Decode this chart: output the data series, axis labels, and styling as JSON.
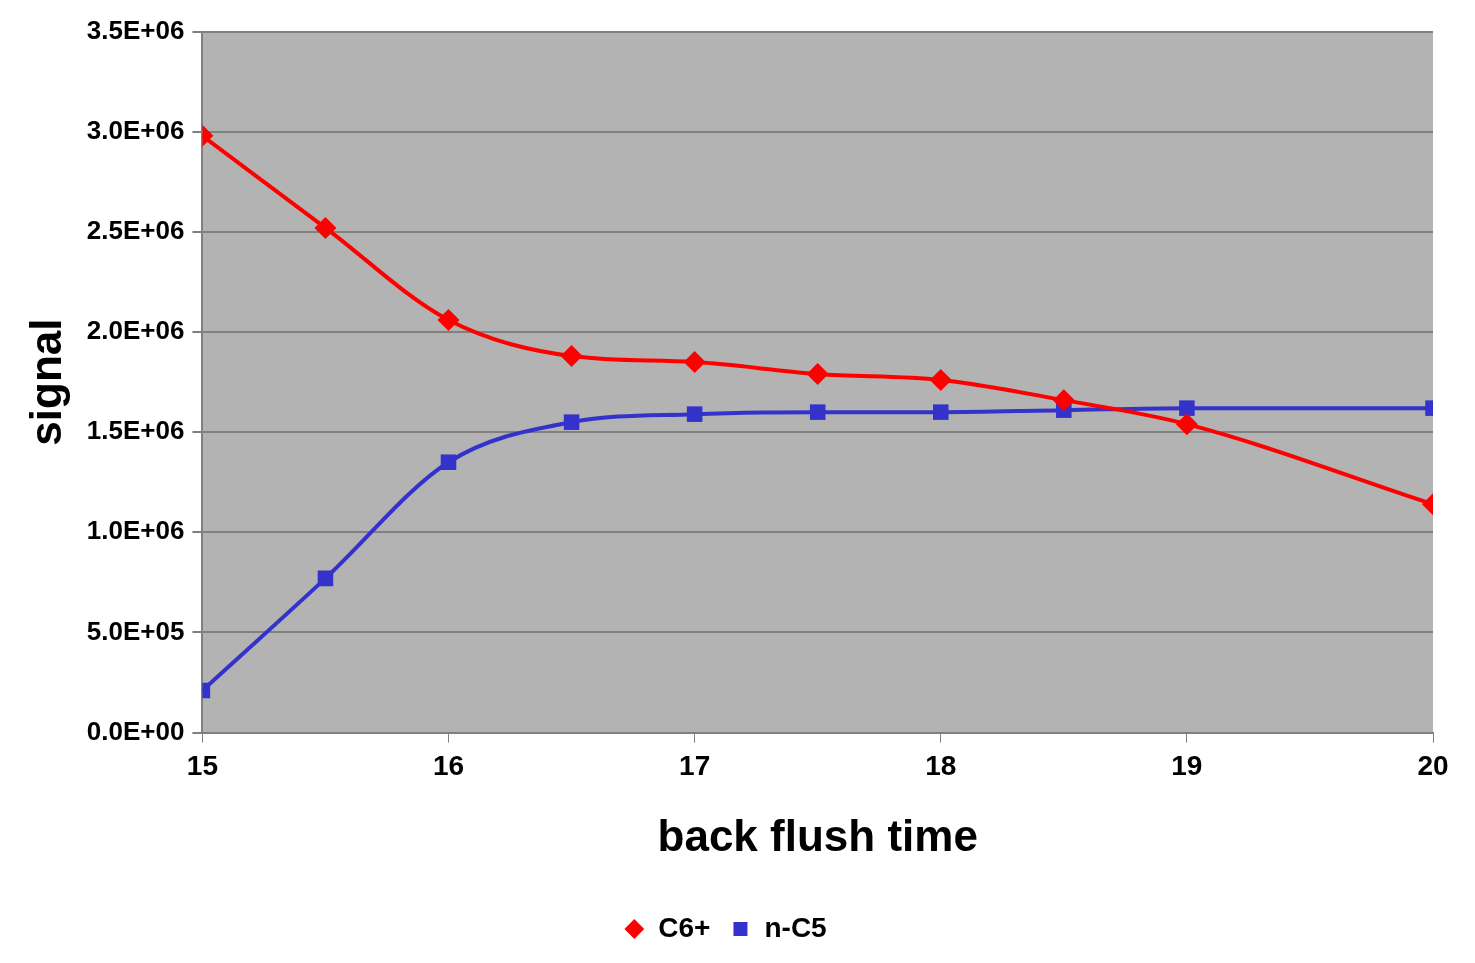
{
  "chart_data": {
    "type": "line",
    "xlabel": "back flush time",
    "ylabel": "signal",
    "x": [
      15,
      15.5,
      16,
      16.5,
      17,
      17.5,
      18,
      18.5,
      19,
      20
    ],
    "series": [
      {
        "name": "C6+",
        "color": "#ff0000",
        "marker": "diamond",
        "values": [
          2980000,
          2520000,
          2060000,
          1880000,
          1850000,
          1790000,
          1760000,
          1660000,
          1540000,
          1140000
        ]
      },
      {
        "name": "n-C5",
        "color": "#3333cc",
        "marker": "square",
        "values": [
          210000,
          770000,
          1350000,
          1550000,
          1590000,
          1600000,
          1600000,
          1610000,
          1620000,
          1620000
        ]
      }
    ],
    "xlim": [
      15,
      20
    ],
    "xticks": [
      15,
      16,
      17,
      18,
      19,
      20
    ],
    "ylim": [
      0,
      3500000
    ],
    "yticks": [
      {
        "value": 0,
        "label": "0.0E+00"
      },
      {
        "value": 500000,
        "label": "5.0E+05"
      },
      {
        "value": 1000000,
        "label": "1.0E+06"
      },
      {
        "value": 1500000,
        "label": "1.5E+06"
      },
      {
        "value": 2000000,
        "label": "2.0E+06"
      },
      {
        "value": 2500000,
        "label": "2.5E+06"
      },
      {
        "value": 3000000,
        "label": "3.0E+06"
      },
      {
        "value": 3500000,
        "label": "3.5E+06"
      }
    ],
    "grid": "y",
    "legend": "bottom",
    "line_style": "solid"
  }
}
